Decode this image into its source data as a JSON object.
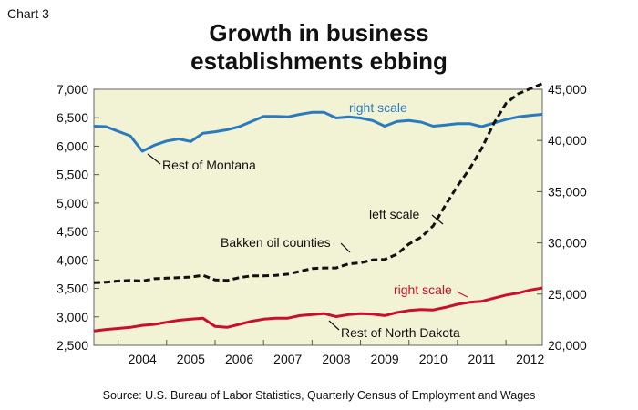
{
  "chart_data": {
    "type": "line",
    "chart_number": "Chart 3",
    "title_lines": [
      "Growth in business",
      "establishments ebbing"
    ],
    "source": "Source: U.S. Bureau of Labor Statistics, Quarterly Census of Employment and Wages",
    "x_categories": [
      "2004",
      "2005",
      "2006",
      "2007",
      "2008",
      "2009",
      "2010",
      "2011",
      "2012"
    ],
    "x_range": [
      2003.5,
      2012.75
    ],
    "left_axis": {
      "ylim": [
        2500,
        7000
      ],
      "ticks": [
        2500,
        3000,
        3500,
        4000,
        4500,
        5000,
        5500,
        6000,
        6500,
        7000
      ],
      "tick_labels": [
        "2,500",
        "3,000",
        "3,500",
        "4,000",
        "4,500",
        "5,000",
        "5,500",
        "6,000",
        "6,500",
        "7,000"
      ]
    },
    "right_axis": {
      "ylim": [
        20000,
        45000
      ],
      "ticks": [
        20000,
        25000,
        30000,
        35000,
        40000,
        45000
      ],
      "tick_labels": [
        "20,000",
        "25,000",
        "30,000",
        "35,000",
        "40,000",
        "45,000"
      ]
    },
    "grid": false,
    "plot_background": "#f2f2d4",
    "series": [
      {
        "name": "Rest of Montana",
        "axis": "right",
        "color": "#2a7bbd",
        "style": "solid",
        "x": [
          2003.5,
          2003.75,
          2004.0,
          2004.25,
          2004.5,
          2004.75,
          2005.0,
          2005.25,
          2005.5,
          2005.75,
          2006.0,
          2006.25,
          2006.5,
          2006.75,
          2007.0,
          2007.25,
          2007.5,
          2007.75,
          2008.0,
          2008.25,
          2008.5,
          2008.75,
          2009.0,
          2009.25,
          2009.5,
          2009.75,
          2010.0,
          2010.25,
          2010.5,
          2010.75,
          2011.0,
          2011.25,
          2011.5,
          2011.75,
          2012.0,
          2012.25,
          2012.5,
          2012.75
        ],
        "values": [
          41400,
          41350,
          40900,
          40450,
          38950,
          39550,
          39950,
          40150,
          39900,
          40700,
          40850,
          41050,
          41350,
          41850,
          42350,
          42350,
          42300,
          42550,
          42750,
          42750,
          42200,
          42300,
          42200,
          41950,
          41400,
          41850,
          41950,
          41800,
          41400,
          41500,
          41650,
          41650,
          41350,
          41700,
          42050,
          42300,
          42450,
          42550
        ]
      },
      {
        "name": "Bakken oil counties",
        "axis": "left",
        "color": "#111111",
        "style": "dashed",
        "x": [
          2003.5,
          2003.75,
          2004.0,
          2004.25,
          2004.5,
          2004.75,
          2005.0,
          2005.25,
          2005.5,
          2005.75,
          2006.0,
          2006.25,
          2006.5,
          2006.75,
          2007.0,
          2007.25,
          2007.5,
          2007.75,
          2008.0,
          2008.25,
          2008.5,
          2008.75,
          2009.0,
          2009.25,
          2009.5,
          2009.75,
          2010.0,
          2010.25,
          2010.5,
          2010.75,
          2011.0,
          2011.25,
          2011.5,
          2011.75,
          2012.0,
          2012.25,
          2012.5,
          2012.75
        ],
        "values": [
          3600,
          3610,
          3630,
          3640,
          3630,
          3670,
          3680,
          3690,
          3700,
          3730,
          3650,
          3640,
          3690,
          3720,
          3720,
          3730,
          3750,
          3800,
          3850,
          3860,
          3860,
          3930,
          3950,
          4000,
          4010,
          4100,
          4280,
          4400,
          4600,
          4960,
          5300,
          5600,
          5960,
          6400,
          6750,
          6920,
          7010,
          7100
        ]
      },
      {
        "name": "Rest of North Dakota",
        "axis": "right",
        "color": "#c8102e",
        "style": "solid",
        "x": [
          2003.5,
          2003.75,
          2004.0,
          2004.25,
          2004.5,
          2004.75,
          2005.0,
          2005.25,
          2005.5,
          2005.75,
          2006.0,
          2006.25,
          2006.5,
          2006.75,
          2007.0,
          2007.25,
          2007.5,
          2007.75,
          2008.0,
          2008.25,
          2008.5,
          2008.75,
          2009.0,
          2009.25,
          2009.5,
          2009.75,
          2010.0,
          2010.25,
          2010.5,
          2010.75,
          2011.0,
          2011.25,
          2011.5,
          2011.75,
          2012.0,
          2012.25,
          2012.5,
          2012.75
        ],
        "values": [
          21400,
          21550,
          21650,
          21750,
          21950,
          22050,
          22250,
          22450,
          22550,
          22650,
          21850,
          21750,
          22050,
          22350,
          22550,
          22650,
          22650,
          22900,
          23000,
          23100,
          22800,
          23000,
          23100,
          23050,
          22900,
          23200,
          23400,
          23500,
          23450,
          23700,
          24000,
          24200,
          24300,
          24600,
          24900,
          25100,
          25400,
          25600
        ]
      }
    ],
    "annotations": {
      "right_scale_blue": "right scale",
      "rest_of_montana": "Rest of Montana",
      "left_scale": "left scale",
      "bakken": "Bakken oil counties",
      "right_scale_red": "right scale",
      "rest_of_north_dakota": "Rest of North Dakota"
    },
    "annotation_colors": {
      "right_scale_blue": "#2a7bbd",
      "right_scale_red": "#c8102e"
    }
  }
}
